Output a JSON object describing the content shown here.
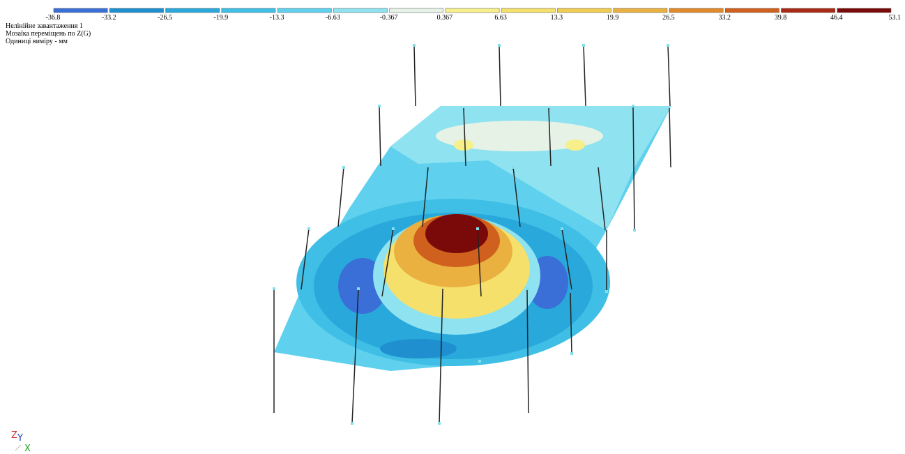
{
  "header": {
    "lines": [
      "Нелінійне завантаження 1",
      "Мозаїка переміщень по Z(G)",
      "Одиниці виміру - мм"
    ]
  },
  "legend": {
    "labels": [
      "-36.8",
      "-33.2",
      "-26.5",
      "-19.9",
      "-13.3",
      "-6.63",
      "-0.367",
      "0.367",
      "6.63",
      "13.3",
      "19.9",
      "26.5",
      "33.2",
      "39.8",
      "46.4",
      "53.1"
    ],
    "colors": [
      "#3a6fd8",
      "#1f8fd0",
      "#29a8dc",
      "#3fbfe6",
      "#5fd0ee",
      "#8fe2f0",
      "#e6f2e6",
      "#f6ef8a",
      "#f4e06a",
      "#f0cc50",
      "#eab040",
      "#e08a2c",
      "#d0601e",
      "#a82a14",
      "#7a0a0a"
    ]
  },
  "axes": {
    "z": "Z",
    "y": "Y",
    "x": "X"
  }
}
